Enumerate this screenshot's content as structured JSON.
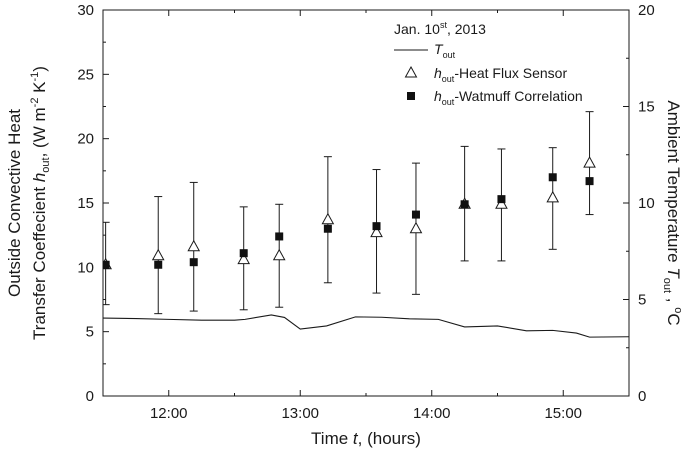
{
  "chart_data": {
    "type": "scatter",
    "legend_placement": "top-right",
    "legend_header": {
      "text": "Jan. 10",
      "sup": "st",
      "tail": ", 2013"
    },
    "xlabel": {
      "pre": "Time ",
      "italic": "t",
      "post": ", (hours)"
    },
    "ylabel_left": {
      "line1": "Outside Convective Heat",
      "line2_pre": "Transfer Coeffecient ",
      "line2_italic": "h",
      "line2_sub": "out",
      "line2_units": ", (W m",
      "line2_sup1": "-2",
      "line2_mid": " K",
      "line2_sup2": "-1",
      "line2_end": ")"
    },
    "ylabel_right": {
      "pre": "Ambient Temperature ",
      "italic": "T",
      "sub": "out",
      "mid": " , ",
      "sup": "o",
      "end": "C"
    },
    "x_range_hours": [
      11.5,
      15.5
    ],
    "x_ticks": [
      {
        "value": 12,
        "label": "12:00"
      },
      {
        "value": 13,
        "label": "13:00"
      },
      {
        "value": 14,
        "label": "14:00"
      },
      {
        "value": 15,
        "label": "15:00"
      }
    ],
    "y_left_range": [
      0,
      30
    ],
    "y_left_ticks": [
      "0",
      "5",
      "10",
      "15",
      "20",
      "25",
      "30"
    ],
    "y_right_range": [
      0,
      20
    ],
    "y_right_ticks": [
      "0",
      "5",
      "10",
      "15",
      "20"
    ],
    "grid": false,
    "series": [
      {
        "name": "T",
        "name_sub": "out",
        "axis": "right",
        "style": "line",
        "x": [
          11.5,
          11.75,
          12.0,
          12.25,
          12.5,
          12.58,
          12.78,
          12.88,
          13.0,
          13.2,
          13.42,
          13.62,
          13.83,
          14.05,
          14.25,
          14.5,
          14.72,
          14.92,
          15.1,
          15.2,
          15.5
        ],
        "y": [
          4.04,
          4.01,
          3.97,
          3.93,
          3.93,
          3.97,
          4.2,
          4.07,
          3.47,
          3.63,
          4.1,
          4.08,
          4.0,
          3.97,
          3.58,
          3.63,
          3.38,
          3.4,
          3.26,
          3.05,
          3.07
        ]
      },
      {
        "name": "-Heat Flux Sensor",
        "name_prefix_italic": "h",
        "name_prefix_sub": "out",
        "axis": "left",
        "style": "open-triangle",
        "x": [
          11.52,
          11.92,
          12.19,
          12.57,
          12.84,
          13.21,
          13.58,
          13.88,
          14.25,
          14.53,
          14.92,
          15.2
        ],
        "y": [
          10.2,
          10.9,
          11.6,
          10.6,
          10.9,
          13.7,
          12.7,
          13.0,
          14.9,
          14.9,
          15.4,
          18.1
        ],
        "err_low": [
          7.1,
          6.4,
          6.6,
          6.7,
          6.9,
          8.8,
          8.0,
          7.9,
          10.5,
          10.5,
          11.4,
          14.1
        ],
        "err_high": [
          13.5,
          15.5,
          16.6,
          14.7,
          14.9,
          18.6,
          17.6,
          18.1,
          19.4,
          19.2,
          19.3,
          22.1
        ]
      },
      {
        "name": "-Watmuff Correlation",
        "name_prefix_italic": "h",
        "name_prefix_sub": "out",
        "axis": "left",
        "style": "filled-square",
        "x": [
          11.52,
          11.92,
          12.19,
          12.57,
          12.84,
          13.21,
          13.58,
          13.88,
          14.25,
          14.53,
          14.92,
          15.2
        ],
        "y": [
          10.2,
          10.2,
          10.4,
          11.1,
          12.4,
          13.0,
          13.2,
          14.1,
          14.9,
          15.3,
          17.0,
          16.7
        ]
      }
    ]
  }
}
